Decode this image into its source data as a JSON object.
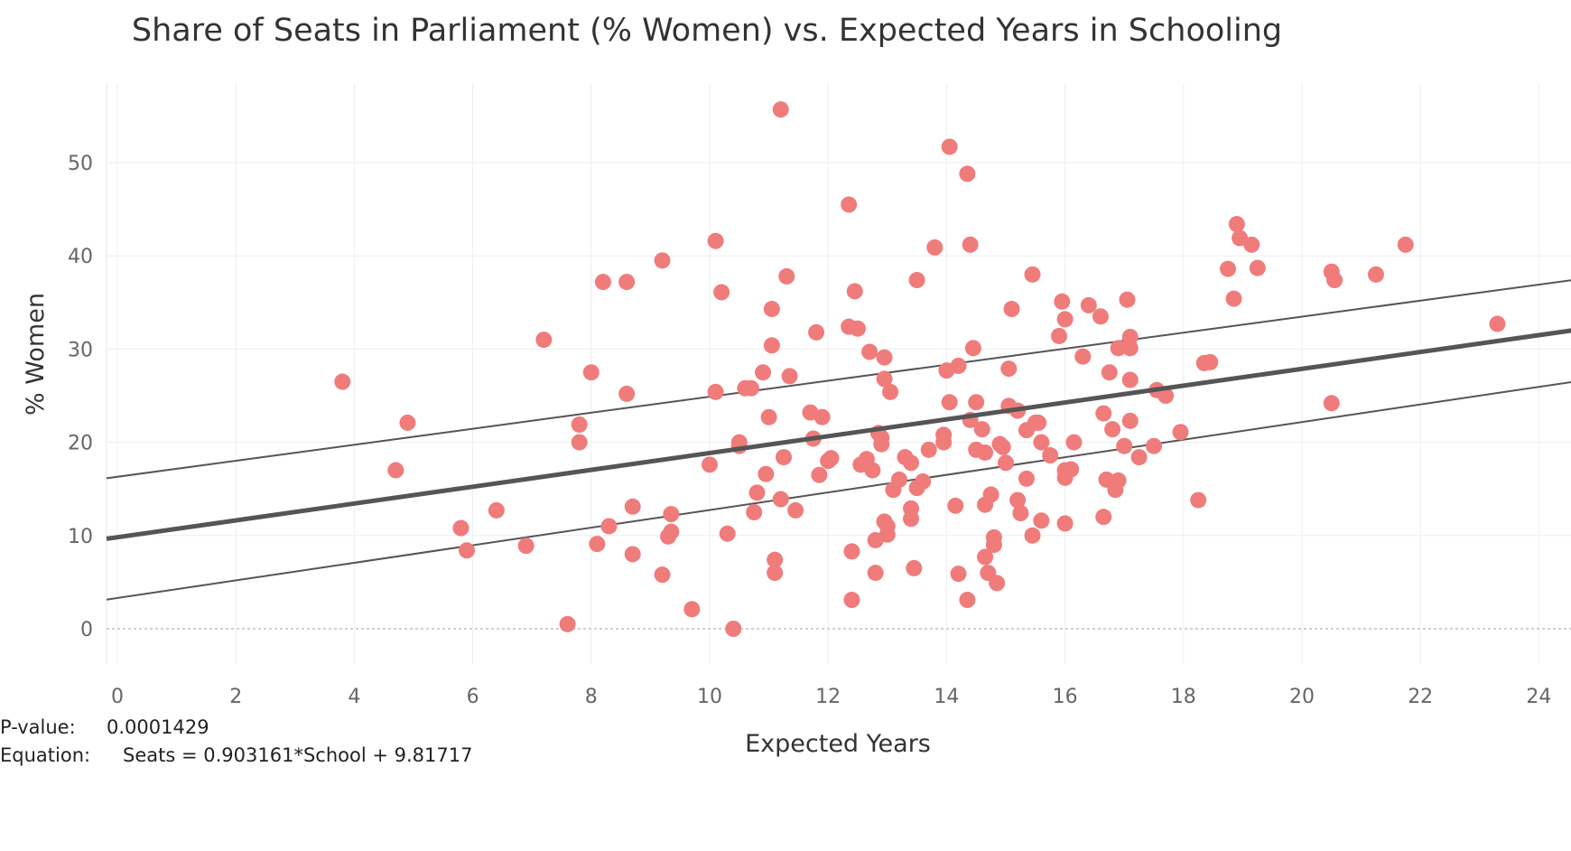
{
  "chart_data": {
    "type": "scatter",
    "title": "Share of Seats in Parliament (% Women) vs. Expected Years in Schooling",
    "xlabel": "Expected Years",
    "ylabel": "% Women",
    "xlim": [
      0,
      24.8
    ],
    "ylim": [
      -3.5,
      58
    ],
    "xticks": [
      "0",
      "2",
      "4",
      "6",
      "8",
      "10",
      "12",
      "14",
      "16",
      "18",
      "20",
      "22",
      "24"
    ],
    "yticks": [
      "0",
      "10",
      "20",
      "30",
      "40",
      "50"
    ],
    "grid": true,
    "point_color": "#f07b7b",
    "line_color": "#555555",
    "trend": {
      "slope": 0.903161,
      "intercept": 9.81717
    },
    "confidence_band": {
      "upper": [
        [
          0,
          16.3
        ],
        [
          24.8,
          37.6
        ]
      ],
      "lower": [
        [
          0,
          3.3
        ],
        [
          24.8,
          26.7
        ]
      ]
    },
    "points": [
      [
        3.8,
        26.5
      ],
      [
        4.7,
        17.0
      ],
      [
        4.9,
        22.1
      ],
      [
        5.8,
        10.8
      ],
      [
        5.9,
        8.4
      ],
      [
        6.4,
        12.7
      ],
      [
        6.9,
        8.9
      ],
      [
        7.2,
        31.0
      ],
      [
        7.6,
        0.5
      ],
      [
        7.8,
        21.9
      ],
      [
        7.8,
        20.0
      ],
      [
        8.0,
        27.5
      ],
      [
        8.1,
        9.1
      ],
      [
        8.2,
        37.2
      ],
      [
        8.3,
        11.0
      ],
      [
        8.6,
        25.2
      ],
      [
        8.6,
        37.2
      ],
      [
        8.7,
        8.0
      ],
      [
        8.7,
        13.1
      ],
      [
        9.2,
        39.5
      ],
      [
        9.2,
        5.8
      ],
      [
        9.3,
        9.9
      ],
      [
        9.35,
        12.3
      ],
      [
        9.35,
        10.4
      ],
      [
        9.7,
        2.1
      ],
      [
        10.0,
        17.6
      ],
      [
        10.1,
        41.6
      ],
      [
        10.1,
        25.4
      ],
      [
        10.2,
        36.1
      ],
      [
        10.3,
        10.2
      ],
      [
        10.4,
        0.0
      ],
      [
        10.5,
        19.6
      ],
      [
        10.5,
        20.0
      ],
      [
        10.6,
        25.8
      ],
      [
        10.7,
        25.8
      ],
      [
        10.75,
        12.5
      ],
      [
        10.8,
        14.6
      ],
      [
        10.9,
        27.5
      ],
      [
        10.95,
        16.6
      ],
      [
        11.0,
        22.7
      ],
      [
        11.05,
        34.3
      ],
      [
        11.05,
        30.4
      ],
      [
        11.1,
        7.4
      ],
      [
        11.1,
        6.0
      ],
      [
        11.2,
        13.9
      ],
      [
        11.2,
        55.7
      ],
      [
        11.25,
        18.4
      ],
      [
        11.3,
        37.8
      ],
      [
        11.35,
        27.1
      ],
      [
        11.45,
        12.7
      ],
      [
        11.7,
        23.2
      ],
      [
        11.75,
        20.4
      ],
      [
        11.8,
        31.8
      ],
      [
        11.85,
        16.5
      ],
      [
        11.9,
        22.7
      ],
      [
        12.0,
        18.0
      ],
      [
        12.05,
        18.3
      ],
      [
        12.35,
        45.5
      ],
      [
        12.35,
        32.4
      ],
      [
        12.4,
        3.1
      ],
      [
        12.4,
        8.3
      ],
      [
        12.45,
        36.2
      ],
      [
        12.5,
        32.2
      ],
      [
        12.55,
        17.6
      ],
      [
        12.65,
        18.2
      ],
      [
        12.7,
        29.7
      ],
      [
        12.75,
        17.0
      ],
      [
        12.8,
        9.5
      ],
      [
        12.8,
        6.0
      ],
      [
        12.85,
        21.0
      ],
      [
        12.9,
        20.5
      ],
      [
        12.9,
        19.8
      ],
      [
        12.95,
        29.1
      ],
      [
        12.95,
        26.8
      ],
      [
        12.95,
        11.5
      ],
      [
        13.0,
        10.1
      ],
      [
        13.0,
        11.0
      ],
      [
        13.05,
        25.4
      ],
      [
        13.1,
        14.9
      ],
      [
        13.2,
        16.0
      ],
      [
        13.3,
        18.4
      ],
      [
        13.4,
        17.8
      ],
      [
        13.4,
        12.9
      ],
      [
        13.4,
        11.8
      ],
      [
        13.45,
        6.5
      ],
      [
        13.5,
        37.4
      ],
      [
        13.5,
        15.1
      ],
      [
        13.6,
        15.8
      ],
      [
        13.7,
        19.2
      ],
      [
        13.8,
        40.9
      ],
      [
        13.95,
        20.0
      ],
      [
        13.95,
        20.8
      ],
      [
        14.0,
        27.7
      ],
      [
        14.05,
        24.3
      ],
      [
        14.05,
        51.7
      ],
      [
        14.15,
        13.2
      ],
      [
        14.2,
        28.2
      ],
      [
        14.2,
        5.9
      ],
      [
        14.35,
        3.1
      ],
      [
        14.4,
        22.4
      ],
      [
        14.35,
        48.8
      ],
      [
        14.4,
        41.2
      ],
      [
        14.45,
        30.1
      ],
      [
        14.5,
        24.3
      ],
      [
        14.5,
        19.2
      ],
      [
        14.6,
        21.4
      ],
      [
        14.65,
        18.9
      ],
      [
        14.65,
        13.3
      ],
      [
        14.65,
        7.7
      ],
      [
        14.7,
        6.0
      ],
      [
        14.75,
        14.4
      ],
      [
        14.8,
        9.8
      ],
      [
        14.8,
        9.0
      ],
      [
        14.85,
        4.9
      ],
      [
        14.9,
        19.8
      ],
      [
        14.95,
        19.5
      ],
      [
        15.0,
        17.8
      ],
      [
        15.05,
        23.9
      ],
      [
        15.05,
        27.9
      ],
      [
        15.1,
        34.3
      ],
      [
        15.2,
        23.4
      ],
      [
        15.2,
        13.8
      ],
      [
        15.25,
        12.4
      ],
      [
        15.35,
        21.3
      ],
      [
        15.35,
        16.1
      ],
      [
        15.45,
        10.0
      ],
      [
        15.45,
        38.0
      ],
      [
        15.5,
        22.1
      ],
      [
        15.55,
        22.1
      ],
      [
        15.6,
        11.6
      ],
      [
        15.6,
        20.0
      ],
      [
        15.75,
        18.6
      ],
      [
        15.9,
        31.4
      ],
      [
        15.95,
        35.1
      ],
      [
        16.0,
        33.2
      ],
      [
        16.0,
        17.0
      ],
      [
        16.0,
        16.2
      ],
      [
        16.0,
        11.3
      ],
      [
        16.1,
        17.1
      ],
      [
        16.15,
        20.0
      ],
      [
        16.3,
        29.2
      ],
      [
        16.4,
        34.7
      ],
      [
        16.6,
        33.5
      ],
      [
        16.65,
        23.1
      ],
      [
        16.65,
        12.0
      ],
      [
        16.7,
        16.0
      ],
      [
        16.75,
        27.5
      ],
      [
        16.8,
        21.4
      ],
      [
        16.85,
        14.9
      ],
      [
        16.85,
        15.7
      ],
      [
        16.9,
        30.1
      ],
      [
        16.9,
        15.9
      ],
      [
        17.0,
        19.6
      ],
      [
        17.05,
        35.3
      ],
      [
        17.1,
        31.3
      ],
      [
        17.1,
        30.1
      ],
      [
        17.1,
        26.7
      ],
      [
        17.1,
        22.3
      ],
      [
        17.25,
        18.4
      ],
      [
        17.5,
        19.6
      ],
      [
        17.55,
        25.6
      ],
      [
        17.7,
        25.0
      ],
      [
        17.95,
        21.1
      ],
      [
        18.25,
        13.8
      ],
      [
        18.35,
        28.5
      ],
      [
        18.45,
        28.6
      ],
      [
        18.75,
        38.6
      ],
      [
        18.85,
        35.4
      ],
      [
        18.9,
        43.4
      ],
      [
        18.95,
        41.9
      ],
      [
        19.15,
        41.2
      ],
      [
        19.25,
        38.7
      ],
      [
        20.5,
        38.3
      ],
      [
        20.55,
        37.4
      ],
      [
        20.5,
        24.2
      ],
      [
        21.25,
        38.0
      ],
      [
        21.75,
        41.2
      ],
      [
        23.3,
        32.7
      ]
    ]
  },
  "stats": {
    "pvalue_label": "P-value:",
    "pvalue": "0.0001429",
    "equation_label": "Equation:",
    "equation": "Seats = 0.903161*School + 9.81717"
  }
}
